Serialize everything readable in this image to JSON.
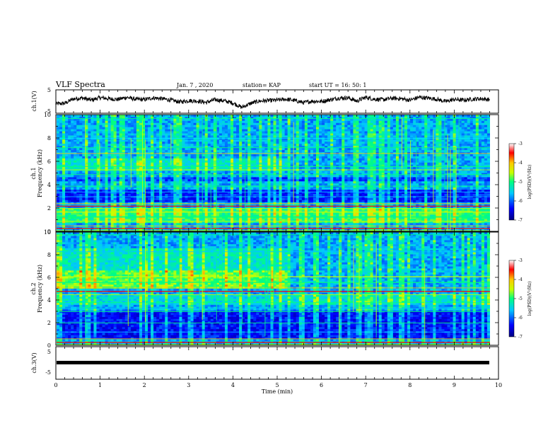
{
  "header": {
    "title": "VLF Spectra",
    "date": "Jan. 7 , 2020",
    "station": "station= KAP",
    "start": "start UT = 16: 50: 1"
  },
  "chart_data": [
    {
      "type": "line",
      "name": "ch1-waveform",
      "ylabel": "ch.1(V)",
      "ylim": [
        -5,
        5
      ],
      "yticks": [
        "5",
        "-5"
      ],
      "xlim": [
        0,
        10
      ],
      "t": [
        0,
        0.2,
        0.4,
        0.6,
        0.8,
        1.0,
        1.2,
        1.4,
        1.6,
        1.8,
        2.0,
        2.2,
        2.4,
        2.6,
        2.8,
        3.0,
        3.2,
        3.4,
        3.6,
        3.8,
        4.0,
        4.2,
        4.4,
        4.6,
        4.8,
        5.0,
        5.2,
        5.4,
        5.6,
        5.8,
        6.0,
        6.2,
        6.4,
        6.6,
        6.8,
        7.0,
        7.2,
        7.4,
        7.6,
        7.8,
        8.0,
        8.2,
        8.4,
        8.6,
        8.8,
        9.0,
        9.2,
        9.4,
        9.6,
        9.8
      ],
      "v": [
        -1.0,
        -0.8,
        1.2,
        1.5,
        0.6,
        1.7,
        1.2,
        0.9,
        1.8,
        1.0,
        0.8,
        1.6,
        1.2,
        0.6,
        -0.2,
        0.4,
        0.2,
        -0.4,
        0.8,
        0.3,
        -0.6,
        -2.5,
        -0.8,
        0.2,
        0.4,
        0.6,
        1.0,
        0.4,
        -0.5,
        0.2,
        0.0,
        0.8,
        1.5,
        1.6,
        0.2,
        1.8,
        1.0,
        0.8,
        1.4,
        1.2,
        0.6,
        1.8,
        1.5,
        1.0,
        0.0,
        0.9,
        0.6,
        1.0,
        1.2,
        0.8
      ]
    },
    {
      "type": "heatmap",
      "name": "ch1-spectrogram",
      "ylabel": "ch.1 Frequency (kHz)",
      "ylim": [
        0,
        10
      ],
      "yticks": [
        "0",
        "2",
        "4",
        "6",
        "8",
        "10"
      ],
      "xlim": [
        0,
        10
      ],
      "colorbar": {
        "label": "log(PSD)(V²/Hz)",
        "range": [
          -7,
          -3
        ],
        "ticks": [
          "-3",
          "-4",
          "-5",
          "-6",
          "-7"
        ]
      }
    },
    {
      "type": "heatmap",
      "name": "ch2-spectrogram",
      "ylabel": "ch.2 Frequency (kHz)",
      "ylim": [
        0,
        10
      ],
      "yticks": [
        "0",
        "2",
        "4",
        "6",
        "8",
        "10"
      ],
      "xlim": [
        0,
        10
      ],
      "colorbar": {
        "label": "log(PSD)(V²/Hz)",
        "range": [
          -7,
          -3
        ],
        "ticks": [
          "-3",
          "-4",
          "-5",
          "-6",
          "-7"
        ]
      }
    },
    {
      "type": "line",
      "name": "ch3-waveform",
      "ylabel": "ch.3(V)",
      "ylim": [
        -5,
        5
      ],
      "yticks": [
        "5",
        "-5"
      ],
      "xlim": [
        0,
        10
      ],
      "value": 0
    }
  ],
  "xaxis": {
    "label": "Time (min)",
    "ticks": [
      "0",
      "1",
      "2",
      "3",
      "4",
      "5",
      "6",
      "7",
      "8",
      "9",
      "10"
    ]
  }
}
